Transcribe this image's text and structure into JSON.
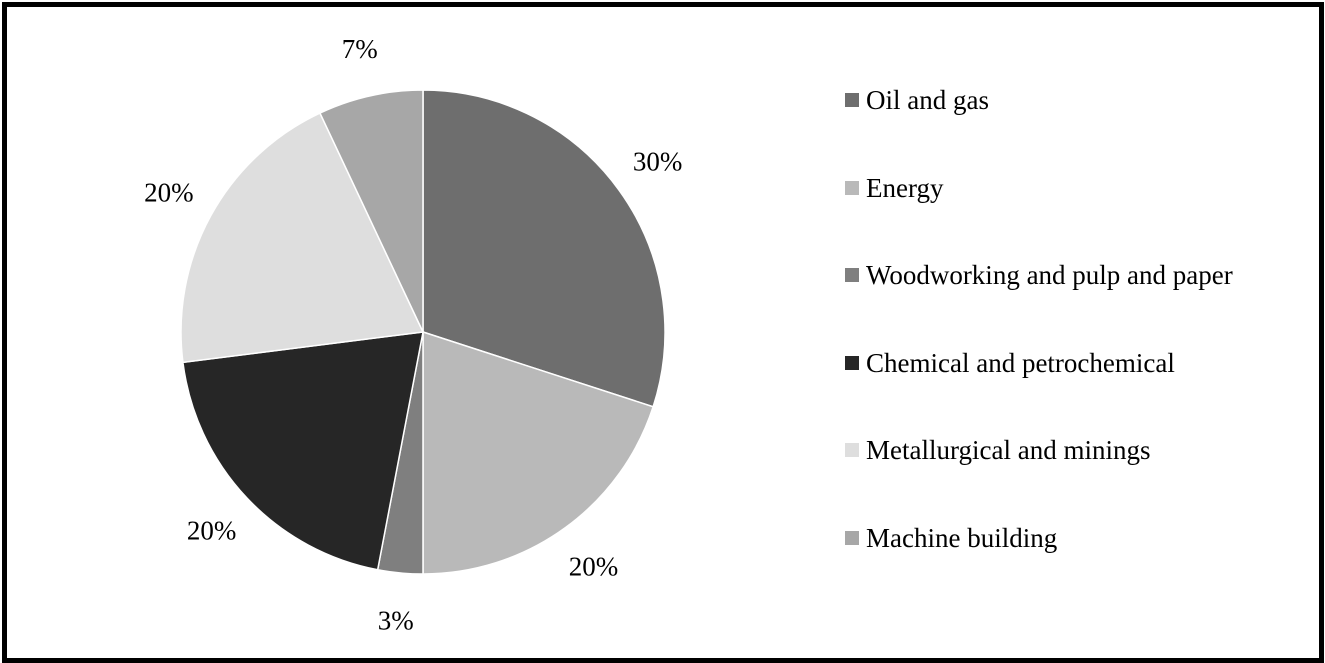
{
  "chart_data": {
    "type": "pie",
    "categories": [
      "Oil and gas",
      "Energy",
      "Woodworking and pulp and paper",
      "Chemical and petrochemical",
      "Metallurgical and minings",
      "Machine building"
    ],
    "values": [
      30,
      20,
      3,
      20,
      20,
      7
    ],
    "data_labels": [
      "30%",
      "20%",
      "3%",
      "20%",
      "20%",
      "7%"
    ],
    "colors": [
      "#6e6e6e",
      "#b9b9b9",
      "#7f7f7f",
      "#262626",
      "#dedede",
      "#a7a7a7"
    ],
    "start_angle_deg": 0,
    "direction": "clockwise",
    "legend_placement": "right",
    "title": ""
  }
}
